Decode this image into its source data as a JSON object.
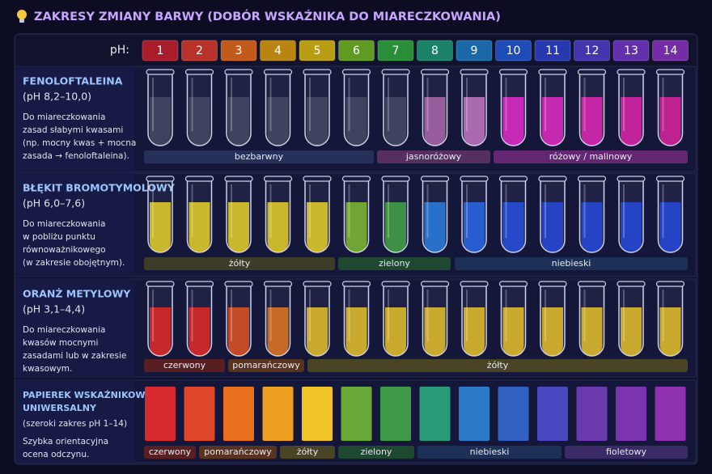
{
  "title": "ZAKRESY ZMIANY BARWY (DOBÓR WSKAŹNIKA DO MIARECZKOWANIA)",
  "ph_label": "pH:",
  "ph_values": [
    1,
    2,
    3,
    4,
    5,
    6,
    7,
    8,
    9,
    10,
    11,
    12,
    13,
    14
  ],
  "ph_colors": [
    "#a81c2c",
    "#b8322a",
    "#c25a1c",
    "#b88412",
    "#b89c12",
    "#5f9a22",
    "#2a8e38",
    "#1a8266",
    "#1a68a8",
    "#1e4cb8",
    "#2838b0",
    "#4434ae",
    "#6230aa",
    "#762ca6"
  ],
  "rows": [
    {
      "name": [
        "FENOLOFTALEINA"
      ],
      "range": "(pH 8,2–10,0)",
      "description": [
        "Do miareczkowania",
        "zasad słabymi kwasami",
        "(np. mocny kwas + mocna",
        "zasada → fenoloftaleina)."
      ],
      "colors": [
        "#3a3f5e",
        "#3a3f5e",
        "#3a3f5e",
        "#3a3f5e",
        "#3a3f5e",
        "#3a3f5e",
        "#3a3f5e",
        "#a860a8",
        "#c070c0",
        "#e020c8",
        "#e020c0",
        "#e01cb4",
        "#dc1aa6",
        "#d81898"
      ],
      "bands": [
        "bezbarwny",
        "jasnoróżowy",
        "różowy / malinowy"
      ]
    },
    {
      "name": [
        "BŁĘKIT BROMOTYMOLOWY"
      ],
      "range": "(pH 6,0–7,6)",
      "description": [
        "Do miareczkowania",
        "w pobliżu punktu",
        "równoważnikowego",
        "(w zakresie obojętnym)."
      ],
      "colors": [
        "#e8d020",
        "#e8d020",
        "#e8d020",
        "#e8d020",
        "#e8d020",
        "#7ab828",
        "#3aa040",
        "#1e78e0",
        "#1e60e8",
        "#1c48e0",
        "#1c40dc",
        "#1c40dc",
        "#1c40dc",
        "#1c40dc"
      ],
      "bands": [
        "żółty",
        "zielony",
        "niebieski"
      ]
    },
    {
      "name": [
        "ORANŻ METYLOWY"
      ],
      "range": "(pH 3,1–4,4)",
      "description": [
        "Do miareczkowania",
        "kwasów mocnymi",
        "zasadami lub w zakresie",
        "kwasowym."
      ],
      "colors": [
        "#e0201c",
        "#e0201c",
        "#e04a18",
        "#e07018",
        "#e8c020",
        "#e8c020",
        "#e8c020",
        "#e8c020",
        "#e8c020",
        "#e8c020",
        "#e8c020",
        "#e8c020",
        "#e8c020",
        "#e8c020"
      ],
      "bands": [
        "czerwony",
        "pomarańczowy",
        "żółty"
      ]
    },
    {
      "name": [
        "PAPIEREK WSKAŹNIKOWY",
        "UNIWERSALNY"
      ],
      "range": "(szeroki zakres pH 1–14)",
      "description": [
        "Szybka orientacyjna",
        "ocena odczynu."
      ],
      "colors": [
        "#d42a30",
        "#e0462a",
        "#e8701e",
        "#f0a020",
        "#f0c428",
        "#6aa83a",
        "#3e9a48",
        "#2a9a78",
        "#2a7ac8",
        "#3060c0",
        "#4a48c0",
        "#6a3aae",
        "#7c34b0",
        "#8e30b0"
      ],
      "bands": [
        "czerwony",
        "pomarańczowy",
        "żółty",
        "zielony",
        "niebieski",
        "fioletowy"
      ]
    }
  ]
}
